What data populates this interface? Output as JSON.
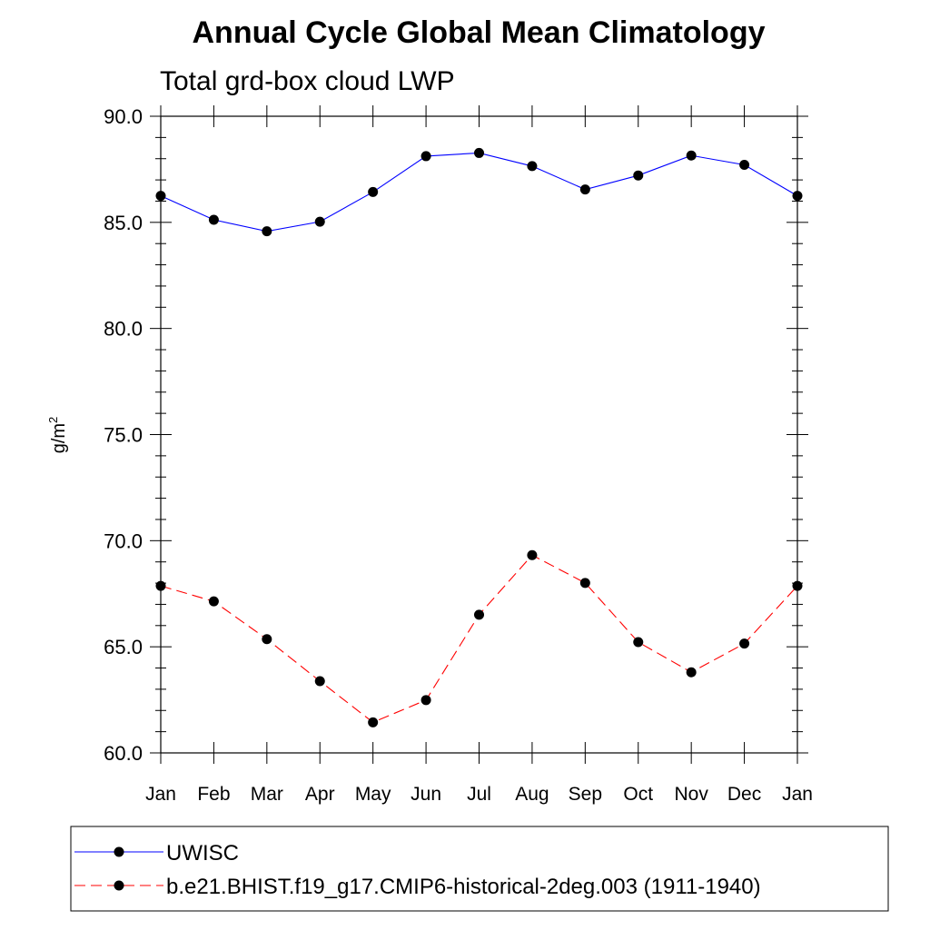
{
  "chart_data": {
    "type": "line",
    "title": "Annual Cycle Global Mean Climatology",
    "subtitle": "Total grd-box cloud LWP",
    "ylabel": "g/m",
    "ylabel_sup": "2",
    "ylim": [
      60,
      90
    ],
    "yticks": [
      "60.0",
      "65.0",
      "70.0",
      "75.0",
      "80.0",
      "85.0",
      "90.0"
    ],
    "ytick_values": [
      60,
      65,
      70,
      75,
      80,
      85,
      90
    ],
    "categories": [
      "Jan",
      "Feb",
      "Mar",
      "Apr",
      "May",
      "Jun",
      "Jul",
      "Aug",
      "Sep",
      "Oct",
      "Nov",
      "Dec",
      "Jan"
    ],
    "grid": false,
    "legend_position": "bottom",
    "series": [
      {
        "name": "UWISC",
        "color": "#0000ff",
        "dash": "solid",
        "values": [
          86.25,
          85.12,
          84.58,
          85.03,
          86.43,
          88.12,
          88.27,
          87.65,
          86.55,
          87.21,
          88.15,
          87.71,
          86.25
        ]
      },
      {
        "name": "b.e21.BHIST.f19_g17.CMIP6-historical-2deg.003 (1911-1940)",
        "color": "#ff0000",
        "dash": "dashed",
        "values": [
          67.87,
          67.14,
          65.36,
          63.38,
          61.44,
          62.49,
          66.51,
          69.32,
          68.01,
          65.22,
          63.8,
          65.15,
          67.87
        ]
      }
    ]
  }
}
